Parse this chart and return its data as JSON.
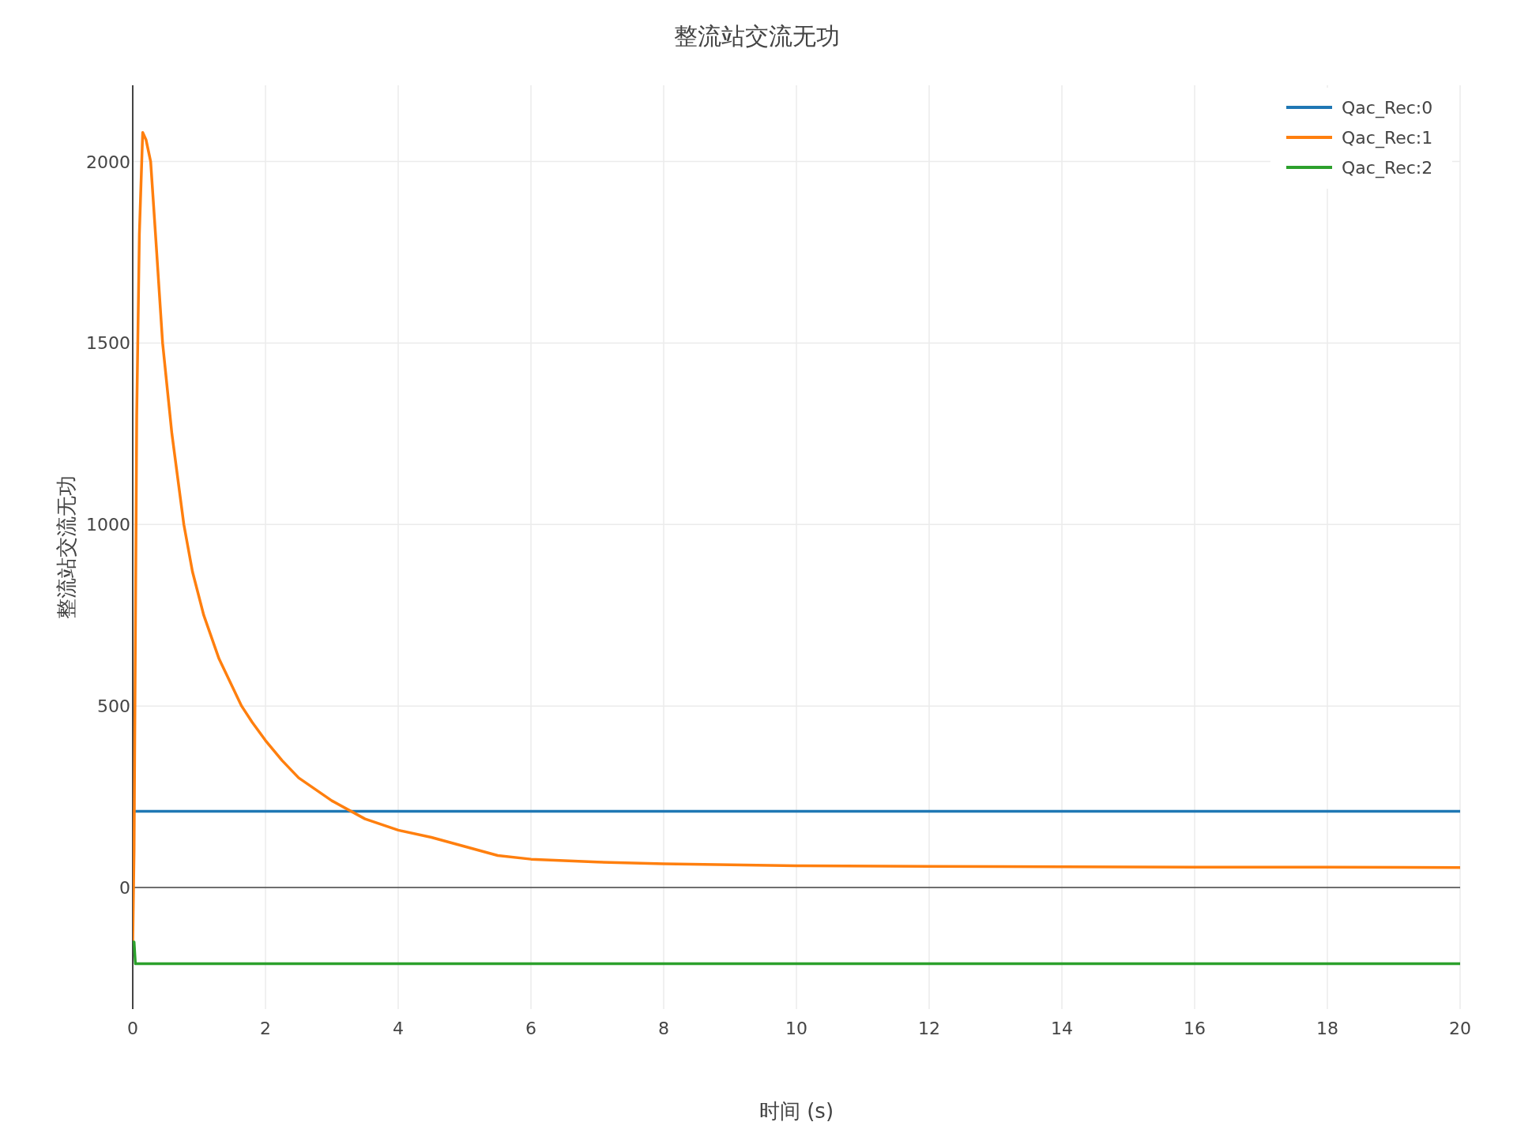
{
  "chart_data": {
    "type": "line",
    "title": "整流站交流无功",
    "xlabel": "时间 (s)",
    "ylabel": "整流站交流无功",
    "xlim": [
      0,
      20
    ],
    "ylim": [
      -335,
      2210
    ],
    "xticks": [
      0,
      2,
      4,
      6,
      8,
      10,
      12,
      14,
      16,
      18,
      20
    ],
    "yticks": [
      0,
      500,
      1000,
      1500,
      2000
    ],
    "grid": true,
    "legend": "top right",
    "line_style": "solid",
    "marker": "none",
    "series": [
      {
        "name": "Qac_Rec:0",
        "color": "#1f77b4",
        "x": [
          0.03,
          20
        ],
        "values": [
          210,
          210
        ]
      },
      {
        "name": "Qac_Rec:1",
        "color": "#ff7f0e",
        "x": [
          0,
          0.02,
          0.04,
          0.06,
          0.1,
          0.15,
          0.2,
          0.27,
          0.35,
          0.45,
          0.59,
          0.77,
          0.9,
          1.07,
          1.3,
          1.64,
          1.8,
          2,
          2.25,
          2.5,
          3,
          3.5,
          4,
          4.5,
          5,
          5.5,
          6,
          7,
          8,
          10,
          12,
          14,
          16,
          18,
          20
        ],
        "values": [
          -150,
          100,
          700,
          1300,
          1800,
          2080,
          2060,
          2000,
          1780,
          1500,
          1250,
          1000,
          870,
          750,
          630,
          500,
          455,
          405,
          350,
          302,
          239,
          189,
          158,
          138,
          113,
          88,
          78,
          70,
          65,
          60,
          58,
          57,
          56,
          56,
          55
        ]
      },
      {
        "name": "Qac_Rec:2",
        "color": "#2ca02c",
        "x": [
          0,
          0.02,
          0.04,
          20
        ],
        "values": [
          -150,
          -150,
          -210,
          -210
        ]
      }
    ]
  }
}
